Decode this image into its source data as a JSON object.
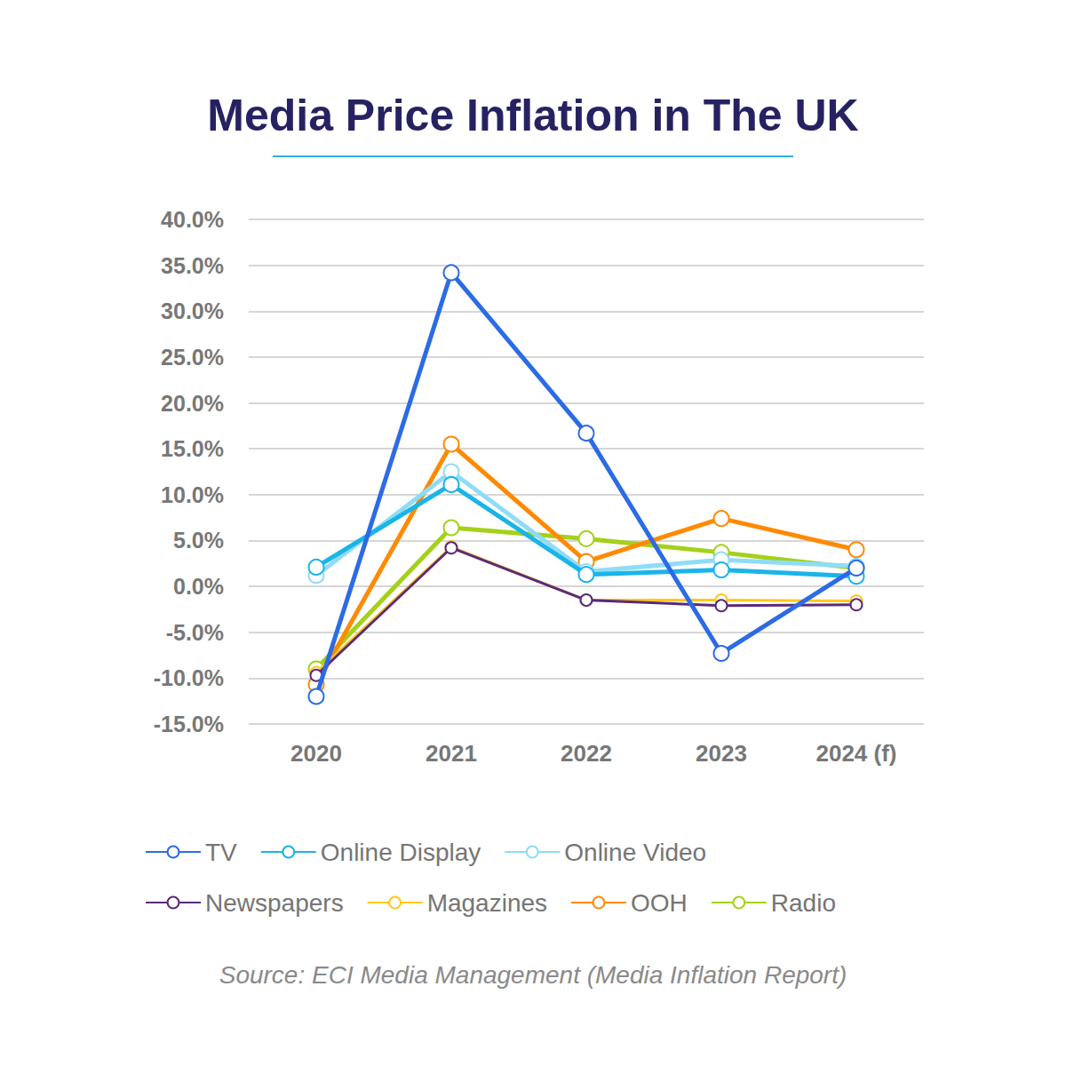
{
  "chart_data": {
    "type": "line",
    "title": "Media Price Inflation in The UK",
    "source": "Source: ECI Media Management (Media Inflation Report)",
    "categories": [
      "2020",
      "2021",
      "2022",
      "2023",
      "2024 (f)"
    ],
    "series": [
      {
        "name": "TV",
        "color": "#2b6be6",
        "values": [
          -12.0,
          34.2,
          16.7,
          -7.3,
          2.0
        ]
      },
      {
        "name": "Online Display",
        "color": "#1ab4e8",
        "values": [
          2.1,
          11.1,
          1.3,
          1.8,
          1.1
        ]
      },
      {
        "name": "Online Video",
        "color": "#8fdcf7",
        "values": [
          1.2,
          12.5,
          1.6,
          2.9,
          2.2
        ]
      },
      {
        "name": "Newspapers",
        "color": "#5c2a7a",
        "values": [
          -9.7,
          4.2,
          -1.5,
          -2.1,
          -2.0
        ]
      },
      {
        "name": "Magazines",
        "color": "#ffc81a",
        "values": [
          -9.4,
          4.3,
          -1.5,
          -1.5,
          -1.6
        ]
      },
      {
        "name": "OOH",
        "color": "#ff8a00",
        "values": [
          -10.7,
          15.5,
          2.7,
          7.4,
          4.0
        ]
      },
      {
        "name": "Radio",
        "color": "#a4d11a",
        "values": [
          -9.0,
          6.4,
          5.2,
          3.7,
          2.0
        ]
      }
    ],
    "ylim": [
      -15,
      40
    ],
    "yticks": [
      {
        "value": -15,
        "label": "-15.0%"
      },
      {
        "value": -10,
        "label": "-10.0%"
      },
      {
        "value": -5,
        "label": "-5.0%"
      },
      {
        "value": 0,
        "label": "0.0%"
      },
      {
        "value": 5,
        "label": "5.0%"
      },
      {
        "value": 10,
        "label": "10.0%"
      },
      {
        "value": 15,
        "label": "15.0%"
      },
      {
        "value": 20,
        "label": "20.0%"
      },
      {
        "value": 25,
        "label": "25.0%"
      },
      {
        "value": 30,
        "label": "30.0%"
      },
      {
        "value": 35,
        "label": "35.0%"
      },
      {
        "value": 40,
        "label": "40.0%"
      }
    ],
    "grid": true,
    "legend": "bottom"
  }
}
